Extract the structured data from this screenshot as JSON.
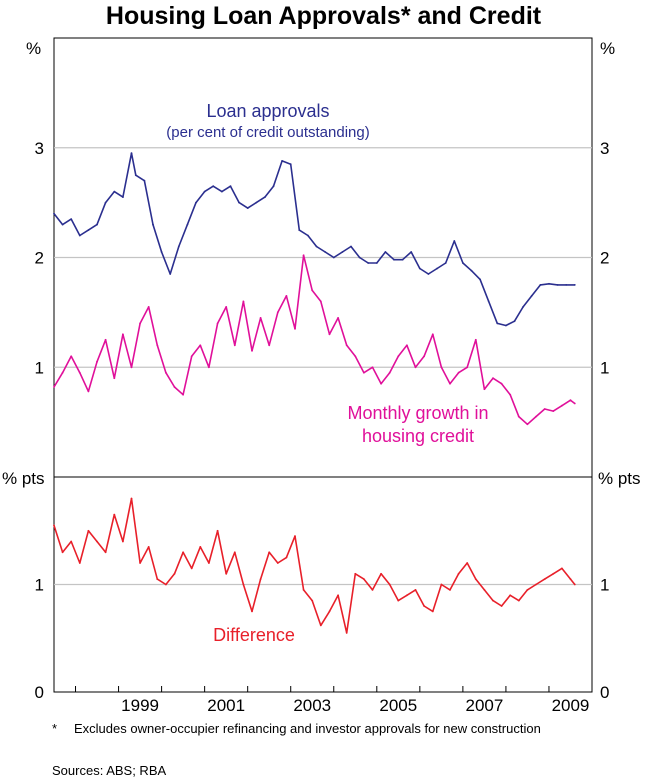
{
  "title": "Housing Loan Approvals* and Credit",
  "footnote": {
    "marker": "*",
    "text": "Excludes owner-occupier refinancing and investor approvals for new construction"
  },
  "sources": "Sources: ABS; RBA",
  "colors": {
    "loan_approvals": "#2b2f8f",
    "housing_credit": "#e0109a",
    "difference": "#e8202a",
    "grid": "#c4c4c4"
  },
  "chart_data": [
    {
      "type": "line",
      "panel": "top",
      "unit_left": "%",
      "unit_right": "%",
      "ylim": [
        0,
        4
      ],
      "yticks": [
        1,
        2,
        3
      ],
      "xlim": [
        1997.5,
        2010.0
      ],
      "labels": {
        "loan_approvals": "Loan approvals",
        "loan_approvals_sub": "(per cent of credit outstanding)",
        "housing_credit_line1": "Monthly growth in",
        "housing_credit_line2": "housing credit"
      },
      "series": [
        {
          "name": "Loan approvals",
          "color_key": "loan_approvals",
          "x": [
            1997.5,
            1997.7,
            1997.9,
            1998.1,
            1998.3,
            1998.5,
            1998.7,
            1998.9,
            1999.1,
            1999.3,
            1999.4,
            1999.6,
            1999.8,
            2000.0,
            2000.2,
            2000.4,
            2000.6,
            2000.8,
            2001.0,
            2001.2,
            2001.4,
            2001.6,
            2001.8,
            2002.0,
            2002.2,
            2002.4,
            2002.6,
            2002.8,
            2003.0,
            2003.2,
            2003.4,
            2003.6,
            2003.8,
            2004.0,
            2004.2,
            2004.4,
            2004.6,
            2004.8,
            2005.0,
            2005.2,
            2005.4,
            2005.6,
            2005.8,
            2006.0,
            2006.2,
            2006.4,
            2006.6,
            2006.8,
            2007.0,
            2007.2,
            2007.4,
            2007.6,
            2007.8,
            2008.0,
            2008.2,
            2008.4,
            2008.6,
            2008.8,
            2009.0,
            2009.2,
            2009.4,
            2009.6
          ],
          "values": [
            2.4,
            2.3,
            2.35,
            2.2,
            2.25,
            2.3,
            2.5,
            2.6,
            2.55,
            2.95,
            2.75,
            2.7,
            2.3,
            2.05,
            1.85,
            2.1,
            2.3,
            2.5,
            2.6,
            2.65,
            2.6,
            2.65,
            2.5,
            2.45,
            2.5,
            2.55,
            2.65,
            2.88,
            2.85,
            2.25,
            2.2,
            2.1,
            2.05,
            2.0,
            2.05,
            2.1,
            2.0,
            1.95,
            1.95,
            2.05,
            1.98,
            1.98,
            2.05,
            1.9,
            1.85,
            1.9,
            1.95,
            2.15,
            1.95,
            1.88,
            1.8,
            1.6,
            1.4,
            1.38,
            1.42,
            1.55,
            1.65,
            1.75,
            1.76,
            1.75,
            1.75,
            1.75
          ]
        },
        {
          "name": "Monthly growth in housing credit",
          "color_key": "housing_credit",
          "x": [
            1997.5,
            1997.7,
            1997.9,
            1998.1,
            1998.3,
            1998.5,
            1998.7,
            1998.9,
            1999.1,
            1999.3,
            1999.5,
            1999.7,
            1999.9,
            2000.1,
            2000.3,
            2000.5,
            2000.7,
            2000.9,
            2001.1,
            2001.3,
            2001.5,
            2001.7,
            2001.9,
            2002.1,
            2002.3,
            2002.5,
            2002.7,
            2002.9,
            2003.1,
            2003.3,
            2003.5,
            2003.7,
            2003.9,
            2004.1,
            2004.3,
            2004.5,
            2004.7,
            2004.9,
            2005.1,
            2005.3,
            2005.5,
            2005.7,
            2005.9,
            2006.1,
            2006.3,
            2006.5,
            2006.7,
            2006.9,
            2007.1,
            2007.3,
            2007.5,
            2007.7,
            2007.9,
            2008.1,
            2008.3,
            2008.5,
            2008.7,
            2008.9,
            2009.1,
            2009.3,
            2009.5,
            2009.6
          ],
          "values": [
            0.82,
            0.95,
            1.1,
            0.95,
            0.78,
            1.05,
            1.25,
            0.9,
            1.3,
            1.0,
            1.4,
            1.55,
            1.2,
            0.95,
            0.82,
            0.75,
            1.1,
            1.2,
            1.0,
            1.4,
            1.55,
            1.2,
            1.6,
            1.15,
            1.45,
            1.2,
            1.5,
            1.65,
            1.35,
            2.02,
            1.7,
            1.6,
            1.3,
            1.45,
            1.2,
            1.1,
            0.95,
            1.0,
            0.85,
            0.95,
            1.1,
            1.2,
            1.0,
            1.1,
            1.3,
            1.0,
            0.85,
            0.95,
            1.0,
            1.25,
            0.8,
            0.9,
            0.85,
            0.75,
            0.55,
            0.48,
            0.55,
            0.62,
            0.6,
            0.65,
            0.7,
            0.67
          ]
        }
      ]
    },
    {
      "type": "line",
      "panel": "bottom",
      "unit_left": "% pts",
      "unit_right": "% pts",
      "ylim": [
        0,
        2
      ],
      "yticks": [
        0,
        1
      ],
      "xlim": [
        1997.5,
        2010.0
      ],
      "xticks": [
        "1999",
        "2001",
        "2003",
        "2005",
        "2007",
        "2009"
      ],
      "xtick_values": [
        1999.5,
        2001.5,
        2003.5,
        2005.5,
        2007.5,
        2009.5
      ],
      "labels": {
        "difference": "Difference"
      },
      "series": [
        {
          "name": "Difference",
          "color_key": "difference",
          "x": [
            1997.5,
            1997.7,
            1997.9,
            1998.1,
            1998.3,
            1998.5,
            1998.7,
            1998.9,
            1999.1,
            1999.3,
            1999.5,
            1999.7,
            1999.9,
            2000.1,
            2000.3,
            2000.5,
            2000.7,
            2000.9,
            2001.1,
            2001.3,
            2001.5,
            2001.7,
            2001.9,
            2002.1,
            2002.3,
            2002.5,
            2002.7,
            2002.9,
            2003.1,
            2003.3,
            2003.5,
            2003.7,
            2003.9,
            2004.1,
            2004.3,
            2004.5,
            2004.7,
            2004.9,
            2005.1,
            2005.3,
            2005.5,
            2005.7,
            2005.9,
            2006.1,
            2006.3,
            2006.5,
            2006.7,
            2006.9,
            2007.1,
            2007.3,
            2007.5,
            2007.7,
            2007.9,
            2008.1,
            2008.3,
            2008.5,
            2008.7,
            2008.9,
            2009.1,
            2009.3,
            2009.5,
            2009.6
          ],
          "values": [
            1.55,
            1.3,
            1.4,
            1.2,
            1.5,
            1.4,
            1.3,
            1.65,
            1.4,
            1.8,
            1.2,
            1.35,
            1.05,
            1.0,
            1.1,
            1.3,
            1.15,
            1.35,
            1.2,
            1.5,
            1.1,
            1.3,
            1.0,
            0.75,
            1.05,
            1.3,
            1.2,
            1.25,
            1.45,
            0.95,
            0.85,
            0.62,
            0.75,
            0.9,
            0.55,
            1.1,
            1.05,
            0.95,
            1.1,
            1.0,
            0.85,
            0.9,
            0.95,
            0.8,
            0.75,
            1.0,
            0.95,
            1.1,
            1.2,
            1.05,
            0.95,
            0.85,
            0.8,
            0.9,
            0.85,
            0.95,
            1.0,
            1.05,
            1.1,
            1.15,
            1.05,
            1.0
          ]
        }
      ]
    }
  ]
}
